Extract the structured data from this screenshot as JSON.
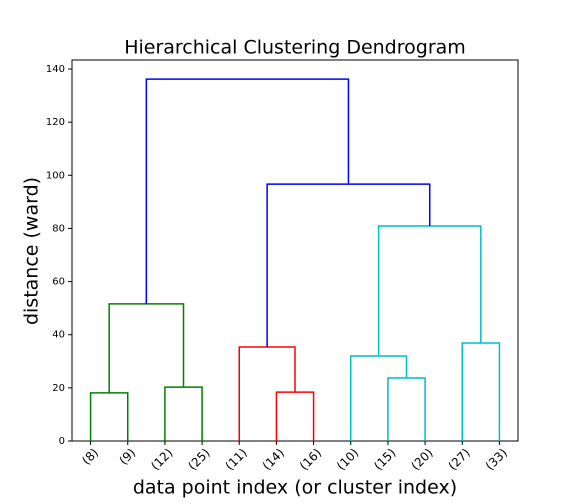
{
  "chart_data": {
    "type": "dendrogram",
    "title": "Hierarchical Clustering Dendrogram",
    "x_label": "data point index (or cluster index)",
    "y_label": "distance (ward)",
    "categories": [
      "(8)",
      "(9)",
      "(12)",
      "(25)",
      "(11)",
      "(14)",
      "(16)",
      "(10)",
      "(15)",
      "(20)",
      "(27)",
      "(33)"
    ],
    "merges": [
      {
        "children": [
          0,
          1
        ],
        "height": 18.1,
        "color": "#008000"
      },
      {
        "children": [
          2,
          3
        ],
        "height": 20.3,
        "color": "#008000"
      },
      {
        "children": [
          12,
          13
        ],
        "height": 51.6,
        "color": "#008000"
      },
      {
        "children": [
          5,
          6
        ],
        "height": 18.4,
        "color": "#ff0000"
      },
      {
        "children": [
          4,
          15
        ],
        "height": 35.4,
        "color": "#ff0000"
      },
      {
        "children": [
          8,
          9
        ],
        "height": 23.7,
        "color": "#00bfbf"
      },
      {
        "children": [
          7,
          17
        ],
        "height": 32.0,
        "color": "#00bfbf"
      },
      {
        "children": [
          10,
          11
        ],
        "height": 36.9,
        "color": "#00bfbf"
      },
      {
        "children": [
          18,
          19
        ],
        "height": 80.9,
        "color": "#00bfbf"
      },
      {
        "children": [
          16,
          20
        ],
        "height": 96.7,
        "color": "#0000ff"
      },
      {
        "children": [
          14,
          21
        ],
        "height": 136.2,
        "color": "#0000ff"
      }
    ],
    "ylim": [
      0,
      143.4
    ],
    "yticks": [
      0,
      20,
      40,
      60,
      80,
      100,
      120,
      140
    ]
  }
}
